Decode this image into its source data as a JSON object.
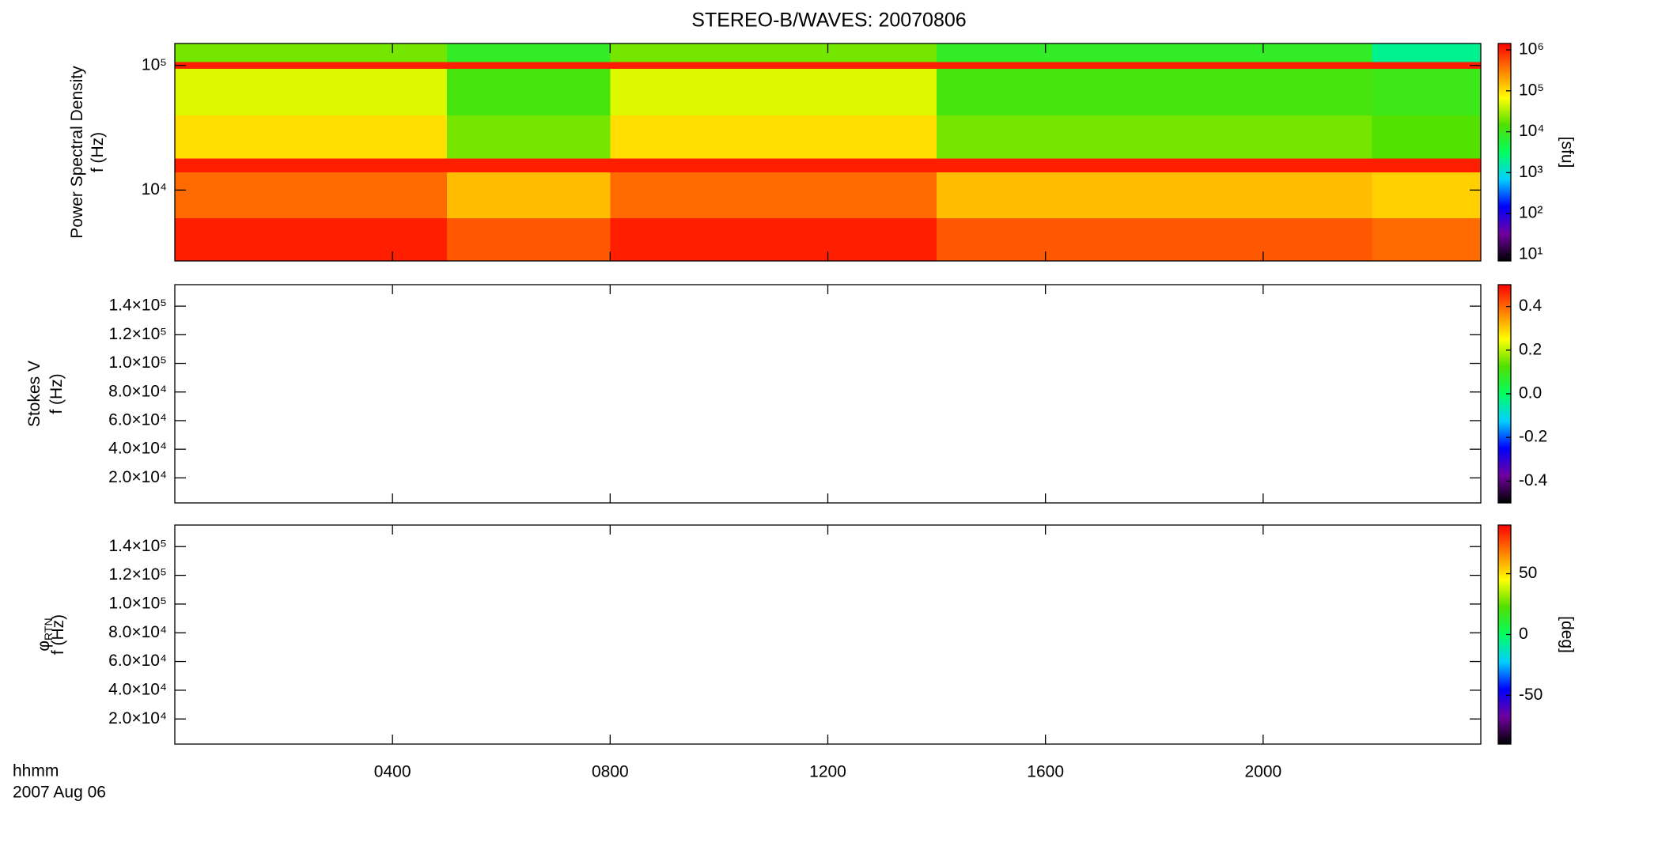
{
  "chart_data": [
    {
      "type": "heatmap",
      "title": "STEREO-B/WAVES: 20070806",
      "ylabel": [
        "Power Spectral Density",
        "f (Hz)"
      ],
      "xlim": [
        0,
        1440
      ],
      "xticks": [
        240,
        480,
        720,
        960,
        1200
      ],
      "ylog": true,
      "ylim": [
        2700,
        150000
      ],
      "yticks": [
        {
          "value": 10000,
          "label": "10⁴"
        },
        {
          "value": 100000,
          "label": "10⁵"
        }
      ],
      "xbins": [
        0,
        60,
        120,
        180,
        240,
        300,
        360,
        420,
        480,
        540,
        600,
        660,
        720,
        780,
        840,
        900,
        960,
        1020,
        1080,
        1140,
        1200,
        1260,
        1320,
        1380,
        1440
      ],
      "ybins": [
        2700,
        6000,
        14000,
        18000,
        40000,
        95000,
        107000,
        150000
      ],
      "z": [
        [
          1000000,
          1000000,
          1000000,
          1000000,
          1000000,
          500000,
          500000,
          500000,
          1000000,
          1000000,
          1000000,
          1000000,
          1000000,
          1000000,
          500000,
          500000,
          500000,
          500000,
          500000,
          500000,
          500000,
          500000,
          400000,
          400000
        ],
        [
          400000,
          400000,
          400000,
          400000,
          400000,
          150000,
          150000,
          150000,
          400000,
          400000,
          400000,
          400000,
          400000,
          400000,
          150000,
          150000,
          150000,
          150000,
          150000,
          150000,
          150000,
          150000,
          120000,
          120000
        ],
        [
          1000000,
          1000000,
          1000000,
          1000000,
          1000000,
          1000000,
          1000000,
          1000000,
          1000000,
          1000000,
          1000000,
          1000000,
          1000000,
          1000000,
          1000000,
          1000000,
          1000000,
          1000000,
          1000000,
          1000000,
          1000000,
          1000000,
          1000000,
          1000000
        ],
        [
          100000,
          100000,
          100000,
          100000,
          100000,
          20000,
          20000,
          20000,
          100000,
          100000,
          100000,
          100000,
          100000,
          100000,
          20000,
          20000,
          20000,
          20000,
          20000,
          20000,
          20000,
          20000,
          15000,
          15000
        ],
        [
          50000,
          50000,
          50000,
          50000,
          50000,
          12000,
          12000,
          12000,
          50000,
          50000,
          50000,
          50000,
          50000,
          50000,
          12000,
          12000,
          12000,
          12000,
          12000,
          12000,
          12000,
          12000,
          10000,
          10000
        ],
        [
          1000000,
          1000000,
          1000000,
          1000000,
          1000000,
          1000000,
          1000000,
          1000000,
          1000000,
          1000000,
          1000000,
          1000000,
          1000000,
          1000000,
          1000000,
          1000000,
          1000000,
          1000000,
          1000000,
          1000000,
          1000000,
          1000000,
          1000000,
          1000000
        ],
        [
          20000,
          20000,
          20000,
          20000,
          20000,
          8000,
          8000,
          8000,
          20000,
          20000,
          20000,
          20000,
          20000,
          20000,
          8000,
          8000,
          8000,
          8000,
          8000,
          8000,
          8000,
          8000,
          2000,
          2000
        ]
      ],
      "colormap": [
        "#000000",
        "#7000a0",
        "#0000ff",
        "#00d0ff",
        "#00ff60",
        "#50e000",
        "#ffff00",
        "#ff8000",
        "#ff0000"
      ],
      "clog": true,
      "clim": [
        7,
        1430000
      ],
      "cticks": [
        {
          "value": 10,
          "label": "10¹"
        },
        {
          "value": 100,
          "label": "10²"
        },
        {
          "value": 1000,
          "label": "10³"
        },
        {
          "value": 10000,
          "label": "10⁴"
        },
        {
          "value": 100000,
          "label": "10⁵"
        },
        {
          "value": 1000000,
          "label": "10⁶"
        }
      ],
      "clabel": "[sfu]"
    },
    {
      "type": "heatmap",
      "ylabel": [
        "Stokes V",
        "f (Hz)"
      ],
      "xlim": [
        0,
        1440
      ],
      "xticks": [
        240,
        480,
        720,
        960,
        1200
      ],
      "ylog": false,
      "ylim": [
        2500,
        155000
      ],
      "yticks": [
        {
          "value": 20000,
          "label": "2.0×10⁴"
        },
        {
          "value": 40000,
          "label": "4.0×10⁴"
        },
        {
          "value": 60000,
          "label": "6.0×10⁴"
        },
        {
          "value": 80000,
          "label": "8.0×10⁴"
        },
        {
          "value": 100000,
          "label": "1.0×10⁵"
        },
        {
          "value": 120000,
          "label": "1.2×10⁵"
        },
        {
          "value": 140000,
          "label": "1.4×10⁵"
        }
      ],
      "colormap": [
        "#000000",
        "#7000a0",
        "#0000ff",
        "#00d0ff",
        "#00ff60",
        "#50e000",
        "#ffff00",
        "#ff8000",
        "#ff0000"
      ],
      "clog": false,
      "clim": [
        -0.5,
        0.5
      ],
      "cticks": [
        -0.4,
        -0.2,
        {
          "value": 0,
          "label": "0.0"
        },
        0.2,
        0.4
      ]
    },
    {
      "type": "heatmap",
      "ylabel": [
        "φ",
        "f (Hz)"
      ],
      "ylabel_subscript": "RTN",
      "xlabel": [
        "hhmm",
        "2007 Aug 06"
      ],
      "xlim": [
        0,
        1440
      ],
      "xticks": [
        {
          "value": 240,
          "label": "0400"
        },
        {
          "value": 480,
          "label": "0800"
        },
        {
          "value": 720,
          "label": "1200"
        },
        {
          "value": 960,
          "label": "1600"
        },
        {
          "value": 1200,
          "label": "2000"
        }
      ],
      "ylog": false,
      "ylim": [
        2500,
        155000
      ],
      "yticks": [
        {
          "value": 20000,
          "label": "2.0×10⁴"
        },
        {
          "value": 40000,
          "label": "4.0×10⁴"
        },
        {
          "value": 60000,
          "label": "6.0×10⁴"
        },
        {
          "value": 80000,
          "label": "8.0×10⁴"
        },
        {
          "value": 100000,
          "label": "1.0×10⁵"
        },
        {
          "value": 120000,
          "label": "1.2×10⁵"
        },
        {
          "value": 140000,
          "label": "1.4×10⁵"
        }
      ],
      "colormap": [
        "#000000",
        "#7000a0",
        "#0000ff",
        "#00d0ff",
        "#00ff60",
        "#50e000",
        "#ffff00",
        "#ff8000",
        "#ff0000"
      ],
      "clog": false,
      "clim": [
        -90,
        90
      ],
      "cticks": [
        -50,
        0,
        50
      ],
      "clabel": "[deg]"
    }
  ]
}
